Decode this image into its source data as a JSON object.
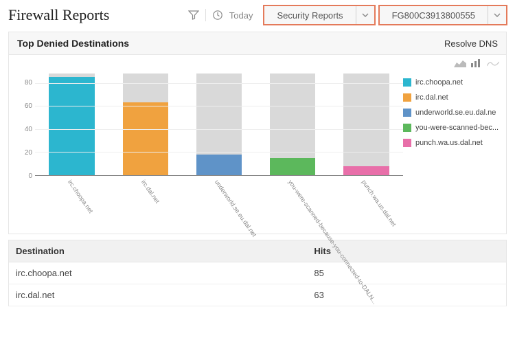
{
  "header": {
    "title": "Firewall Reports",
    "time_label": "Today",
    "report_dropdown": "Security Reports",
    "device_dropdown": "FG800C3913800555"
  },
  "panel": {
    "title": "Top Denied Destinations",
    "right_action": "Resolve DNS"
  },
  "chart": {
    "type": "bar",
    "y_max": 90,
    "y_ticks": [
      0,
      20,
      40,
      60,
      80
    ],
    "bar_bg_color": "#d9d9d9",
    "grid_color": "#eeeeee",
    "axis_color": "#888888",
    "series": [
      {
        "label": "irc.choopa.net",
        "value": 85,
        "bg_height": 88,
        "color": "#2cb6cf"
      },
      {
        "label": "irc.dal.net",
        "value": 63,
        "bg_height": 88,
        "color": "#f0a23f"
      },
      {
        "label": "underworld.se.eu.dal.net",
        "value": 18,
        "bg_height": 88,
        "color": "#5f93c8"
      },
      {
        "label": "you-were-scanned-because-you-connected-to-DALN...",
        "value": 15,
        "bg_height": 88,
        "color": "#5cb85c"
      },
      {
        "label": "punch.wa.us.dal.net",
        "value": 8,
        "bg_height": 88,
        "color": "#e86fa9"
      }
    ],
    "legend": [
      {
        "label": "irc.choopa.net",
        "color": "#2cb6cf"
      },
      {
        "label": "irc.dal.net",
        "color": "#f0a23f"
      },
      {
        "label": "underworld.se.eu.dal.net",
        "color": "#5f93c8",
        "truncated": "underworld.se.eu.dal.ne"
      },
      {
        "label": "you-were-scanned-bec...",
        "color": "#5cb85c"
      },
      {
        "label": "punch.wa.us.dal.net",
        "color": "#e86fa9"
      }
    ]
  },
  "table": {
    "columns": [
      "Destination",
      "Hits"
    ],
    "rows": [
      [
        "irc.choopa.net",
        "85"
      ],
      [
        "irc.dal.net",
        "63"
      ]
    ]
  }
}
